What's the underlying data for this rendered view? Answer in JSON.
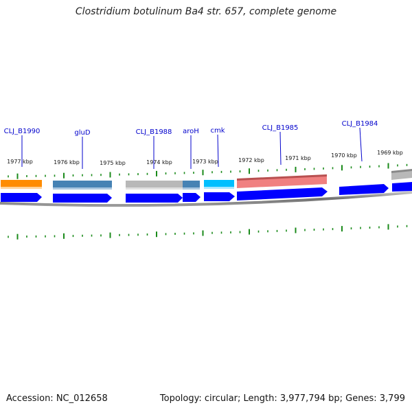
{
  "title": "Clostridium botulinum Ba4 str. 657, complete genome",
  "footer": {
    "accession": "Accession: NC_012658",
    "summary": "Topology: circular; Length: 3,977,794 bp; Genes: 3,799"
  },
  "colors": {
    "gene_label": "#0000cc",
    "tick": "#1a8a1a",
    "backbone": "#808080",
    "cds_arrow": "#0000ff"
  },
  "kbp_labels": [
    "1977 kbp",
    "1976 kbp",
    "1975 kbp",
    "1974 kbp",
    "1973 kbp",
    "1972 kbp",
    "1971 kbp",
    "1970 kbp",
    "1969 kbp"
  ],
  "genes": [
    {
      "label": "CLJ_B1990",
      "color": "#ff8c00"
    },
    {
      "label": "gluD",
      "color": "#4682b4"
    },
    {
      "label": "CLJ_B1988",
      "color": "#b8b8b8"
    },
    {
      "label": "aroH",
      "color": "#4682b4"
    },
    {
      "label": "cmk",
      "color": "#00bfff"
    },
    {
      "label": "CLJ_B1985",
      "color": "#f08080"
    },
    {
      "label": "CLJ_B1984",
      "color": "#0000ff"
    }
  ]
}
